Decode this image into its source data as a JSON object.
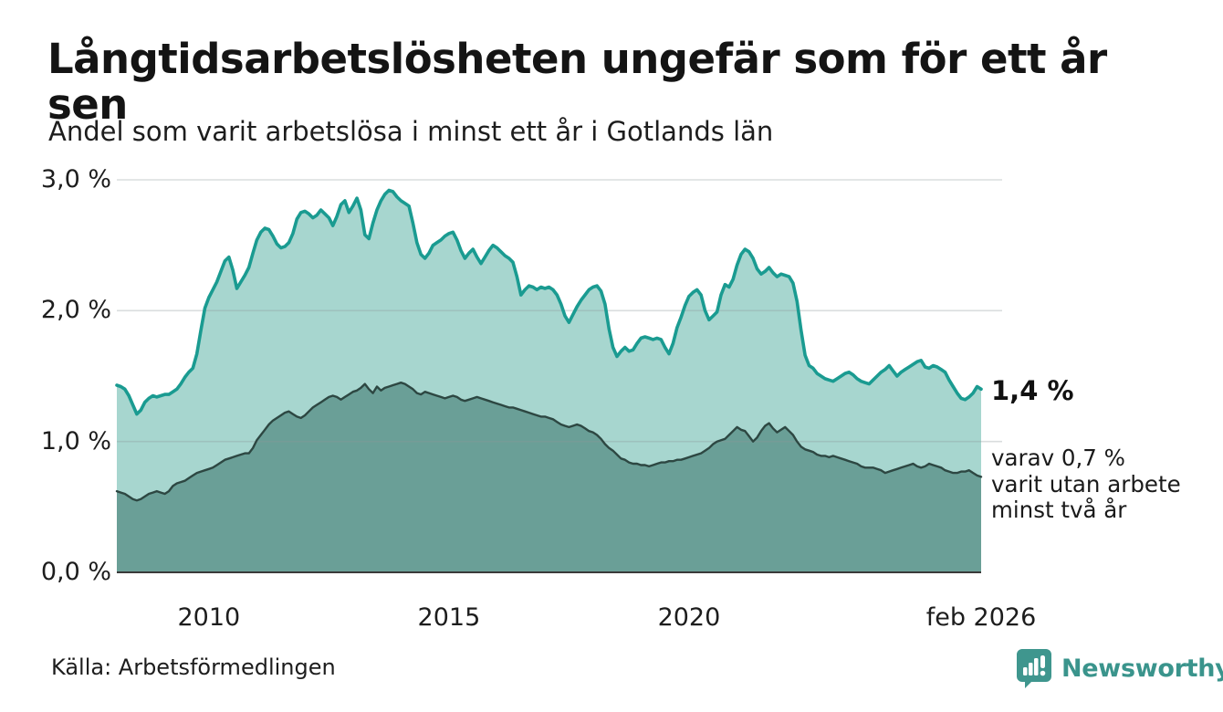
{
  "header": {
    "title": "Långtidsarbetslösheten ungefär som för ett år sen",
    "subtitle": "Andel som varit arbetslösa i minst ett år i Gotlands län"
  },
  "annotations": {
    "end_value_label": "1,4 %",
    "note_lines": [
      "varav 0,7 %",
      "varit utan arbete",
      "minst två år"
    ]
  },
  "footer": {
    "source": "Källa: Arbetsförmedlingen",
    "brand": "Newsworthy"
  },
  "colors": {
    "line_primary": "#1a9b91",
    "fill_primary": "#a7d6cf",
    "line_secondary": "#2d4742",
    "fill_secondary": "#6a9f97",
    "grid": "#8c9698",
    "axis": "#3a3a3a",
    "brand_teal": "#3f968e"
  },
  "chart_data": {
    "type": "area",
    "title": "Långtidsarbetslösheten ungefär som för ett år sen",
    "subtitle": "Andel som varit arbetslösa i minst ett år i Gotlands län",
    "unit": "%",
    "x_start": 2008.0833,
    "x_step": 0.0833333,
    "ylim": [
      0,
      3.0
    ],
    "grid": true,
    "y_ticks": [
      {
        "v": 0,
        "label": "0,0 %"
      },
      {
        "v": 1,
        "label": "1,0 %"
      },
      {
        "v": 2,
        "label": "2,0 %"
      },
      {
        "v": 3,
        "label": "3,0 %"
      }
    ],
    "x_ticks": [
      {
        "x": 2010.0,
        "label": "2010"
      },
      {
        "x": 2015.0,
        "label": "2015"
      },
      {
        "x": 2020.0,
        "label": "2020"
      },
      {
        "x": 2026.0833,
        "label": "feb 2026"
      }
    ],
    "series": [
      {
        "name": "Andel som varit arbetslösa minst ett år",
        "end_value": 1.4,
        "end_label": "1,4 %",
        "values": [
          1.43,
          1.42,
          1.4,
          1.35,
          1.28,
          1.21,
          1.24,
          1.3,
          1.33,
          1.35,
          1.34,
          1.35,
          1.36,
          1.36,
          1.38,
          1.4,
          1.44,
          1.49,
          1.53,
          1.56,
          1.67,
          1.85,
          2.02,
          2.1,
          2.16,
          2.22,
          2.3,
          2.38,
          2.41,
          2.31,
          2.17,
          2.22,
          2.27,
          2.33,
          2.44,
          2.54,
          2.6,
          2.63,
          2.62,
          2.57,
          2.51,
          2.48,
          2.49,
          2.52,
          2.59,
          2.7,
          2.75,
          2.76,
          2.74,
          2.71,
          2.73,
          2.77,
          2.74,
          2.71,
          2.65,
          2.72,
          2.81,
          2.84,
          2.75,
          2.8,
          2.86,
          2.77,
          2.58,
          2.55,
          2.67,
          2.77,
          2.84,
          2.89,
          2.92,
          2.91,
          2.87,
          2.84,
          2.82,
          2.8,
          2.67,
          2.52,
          2.43,
          2.4,
          2.44,
          2.5,
          2.52,
          2.54,
          2.57,
          2.59,
          2.6,
          2.54,
          2.46,
          2.4,
          2.44,
          2.47,
          2.41,
          2.36,
          2.41,
          2.46,
          2.5,
          2.48,
          2.45,
          2.42,
          2.4,
          2.37,
          2.26,
          2.12,
          2.16,
          2.19,
          2.18,
          2.16,
          2.18,
          2.17,
          2.18,
          2.16,
          2.12,
          2.05,
          1.96,
          1.91,
          1.97,
          2.03,
          2.08,
          2.12,
          2.16,
          2.18,
          2.19,
          2.15,
          2.05,
          1.86,
          1.72,
          1.65,
          1.69,
          1.72,
          1.69,
          1.7,
          1.75,
          1.79,
          1.8,
          1.79,
          1.78,
          1.79,
          1.78,
          1.72,
          1.67,
          1.75,
          1.87,
          1.95,
          2.04,
          2.11,
          2.14,
          2.16,
          2.12,
          2.0,
          1.93,
          1.96,
          1.99,
          2.12,
          2.2,
          2.18,
          2.24,
          2.35,
          2.43,
          2.47,
          2.45,
          2.4,
          2.32,
          2.28,
          2.3,
          2.33,
          2.29,
          2.26,
          2.28,
          2.27,
          2.26,
          2.21,
          2.07,
          1.85,
          1.66,
          1.58,
          1.56,
          1.52,
          1.5,
          1.48,
          1.47,
          1.46,
          1.48,
          1.5,
          1.52,
          1.53,
          1.51,
          1.48,
          1.46,
          1.45,
          1.44,
          1.47,
          1.5,
          1.53,
          1.55,
          1.58,
          1.54,
          1.5,
          1.53,
          1.55,
          1.57,
          1.59,
          1.61,
          1.62,
          1.57,
          1.56,
          1.58,
          1.57,
          1.55,
          1.53,
          1.47,
          1.42,
          1.37,
          1.33,
          1.32,
          1.34,
          1.37,
          1.42,
          1.4
        ]
      },
      {
        "name": "varav utan arbete minst två år",
        "end_value": 0.7,
        "end_label": "varav 0,7 % varit utan arbete minst två år",
        "values": [
          0.62,
          0.61,
          0.6,
          0.58,
          0.56,
          0.55,
          0.56,
          0.58,
          0.6,
          0.61,
          0.62,
          0.61,
          0.6,
          0.62,
          0.66,
          0.68,
          0.69,
          0.7,
          0.72,
          0.74,
          0.76,
          0.77,
          0.78,
          0.79,
          0.8,
          0.82,
          0.84,
          0.86,
          0.87,
          0.88,
          0.89,
          0.9,
          0.91,
          0.91,
          0.95,
          1.01,
          1.05,
          1.09,
          1.13,
          1.16,
          1.18,
          1.2,
          1.22,
          1.23,
          1.21,
          1.19,
          1.18,
          1.2,
          1.23,
          1.26,
          1.28,
          1.3,
          1.32,
          1.34,
          1.35,
          1.34,
          1.32,
          1.34,
          1.36,
          1.38,
          1.39,
          1.41,
          1.44,
          1.4,
          1.37,
          1.42,
          1.39,
          1.41,
          1.42,
          1.43,
          1.44,
          1.45,
          1.44,
          1.42,
          1.4,
          1.37,
          1.36,
          1.38,
          1.37,
          1.36,
          1.35,
          1.34,
          1.33,
          1.34,
          1.35,
          1.34,
          1.32,
          1.31,
          1.32,
          1.33,
          1.34,
          1.33,
          1.32,
          1.31,
          1.3,
          1.29,
          1.28,
          1.27,
          1.26,
          1.26,
          1.25,
          1.24,
          1.23,
          1.22,
          1.21,
          1.2,
          1.19,
          1.19,
          1.18,
          1.17,
          1.15,
          1.13,
          1.12,
          1.11,
          1.12,
          1.13,
          1.12,
          1.1,
          1.08,
          1.07,
          1.05,
          1.02,
          0.98,
          0.95,
          0.93,
          0.9,
          0.87,
          0.86,
          0.84,
          0.83,
          0.83,
          0.82,
          0.82,
          0.81,
          0.82,
          0.83,
          0.84,
          0.84,
          0.85,
          0.85,
          0.86,
          0.86,
          0.87,
          0.88,
          0.89,
          0.9,
          0.91,
          0.93,
          0.95,
          0.98,
          1.0,
          1.01,
          1.02,
          1.05,
          1.08,
          1.11,
          1.09,
          1.08,
          1.04,
          1.0,
          1.03,
          1.08,
          1.12,
          1.14,
          1.1,
          1.07,
          1.09,
          1.11,
          1.08,
          1.05,
          1.0,
          0.96,
          0.94,
          0.93,
          0.92,
          0.9,
          0.89,
          0.89,
          0.88,
          0.89,
          0.88,
          0.87,
          0.86,
          0.85,
          0.84,
          0.83,
          0.81,
          0.8,
          0.8,
          0.8,
          0.79,
          0.78,
          0.76,
          0.77,
          0.78,
          0.79,
          0.8,
          0.81,
          0.82,
          0.83,
          0.81,
          0.8,
          0.81,
          0.83,
          0.82,
          0.81,
          0.8,
          0.78,
          0.77,
          0.76,
          0.76,
          0.77,
          0.77,
          0.78,
          0.76,
          0.74,
          0.73
        ]
      }
    ]
  }
}
